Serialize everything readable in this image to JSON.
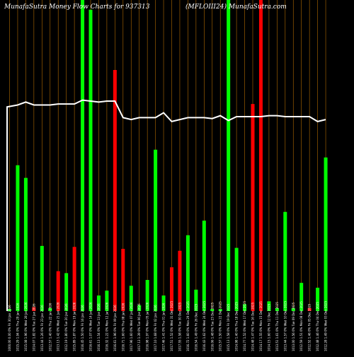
{
  "title": {
    "left": "MunafaSutra  Money Flow  Charts for 937313",
    "right": "(MFLOIII24) MunafaSutra.com"
  },
  "colors": {
    "background": "#000000",
    "up": "#00ff00",
    "down": "#ff0000",
    "grid": "#b36b00",
    "line": "#ffffff",
    "text": "#ffffff"
  },
  "chart_data": {
    "type": "bar",
    "categories": [
      "Fri 30 Jan 2026",
      "Thu 29 Jan 2026",
      "Wed 28 Jan 2026",
      "Tue 27 Jan 2026",
      "Fri 23 Jan 2026",
      "Thu 22 Jan 2026",
      "Wed 21 Jan 2026",
      "Tue 20 Jan 2026",
      "Mon 19 Jan 2026",
      "Fri 16 Jan 2026",
      "Wed 14 Jan 2026",
      "Tue 13 Jan 2026",
      "Mon 12 Jan 2026",
      "Fri 09 Jan 2026",
      "Thu 08 Jan 2026",
      "Wed 07 Jan 2026",
      "Tue 06 Jan 2026",
      "Mon 05 Jan 2026",
      "Fri 02 Jan 2026",
      "Thu 01 Jan 2026",
      "Wed 31 Dec 2025",
      "Tue 30 Dec 2025",
      "Mon 29 Dec 2025",
      "Fri 26 Dec 2025",
      "Wed 24 Dec 2025",
      "Tue 23 Dec 2025",
      "Mon 22 Dec 2025",
      "Fri 19 Dec 2025",
      "Thu 18 Dec 2025",
      "Wed 17 Dec 2025",
      "Tue 16 Dec 2025",
      "Mon 15 Dec 2025",
      "Fri 12 Dec 2025",
      "Thu 11 Dec 2025",
      "Wed 10 Dec 2025",
      "Tue 09 Dec 2025",
      "Mon 08 Dec 2025",
      "Fri 05 Dec 2025",
      "Thu 04 Dec 2025",
      "Wed 03 Dec 2025"
    ],
    "bar_labels": [
      "1000.00 0.00 0%",
      "1015.29 1.94 0%",
      "1015.08 1.96 0%",
      "1014.07 1.82 0%",
      "1013.44 1.26 0%",
      "1012.57 1.40 0%",
      "1013.13 1.42 0%",
      "1012.19 1.80 0%",
      "1015.89 1.87 0%",
      "1016.45 1.50 0%",
      "1016.61 1.07 0%",
      "1016.13 1.54 0%",
      "1016.32 1.22 0%",
      "1016.61 1.96 0%",
      "1016.71 1.60 0%",
      "1017.96 1.60 0%",
      "1017.13 1.39 0%",
      "1016.98 1.97 0%",
      "1017.10 1.68 0%",
      "1017.46 1.41 0%",
      "1017.51 1.52 0%",
      "1017.55 1.58 0%",
      "1016.72 1.60 0%",
      "1016.54 1.49 0%",
      "1016.43 1.62 0%",
      "1016.06 1.48 0%",
      "1015.57 1.50 0%",
      "1015.13 1.58 0%",
      "1014.98 1.40 0%",
      "1014.77 1.52 0%",
      "1014.48 1.47 0%",
      "1014.17 1.55 0%",
      "1014.15 1.60 0%",
      "1013.51 1.61 0%",
      "1013.44 1.57 0%",
      "1013.00 1.56 0%",
      "1012.59 1.51 0%",
      "1012.52 1.46 0%",
      "1012.48 1.46 0%",
      "1012.28 1.49 0%"
    ],
    "values": [
      0.2,
      15.0,
      13.7,
      0.4,
      6.7,
      0.3,
      4.1,
      3.9,
      6.6,
      32.0,
      31.0,
      1.6,
      2.1,
      24.8,
      6.4,
      2.6,
      0.6,
      3.2,
      16.6,
      1.6,
      4.5,
      6.2,
      7.8,
      2.2,
      9.3,
      0.2,
      0.2,
      32.0,
      6.5,
      0.7,
      21.3,
      32.0,
      1.0,
      0.3,
      10.2,
      0.3,
      2.9,
      0.3,
      2.4,
      15.8
    ],
    "directions": [
      "up",
      "up",
      "up",
      "down",
      "up",
      "up",
      "down",
      "up",
      "down",
      "up",
      "up",
      "up",
      "up",
      "down",
      "down",
      "up",
      "up",
      "up",
      "up",
      "up",
      "down",
      "down",
      "up",
      "up",
      "up",
      "up",
      "up",
      "up",
      "up",
      "up",
      "down",
      "down",
      "up",
      "up",
      "up",
      "up",
      "up",
      "down",
      "up",
      "up"
    ],
    "line": [
      21.0,
      21.2,
      21.5,
      21.2,
      21.2,
      21.2,
      21.3,
      21.3,
      21.3,
      21.7,
      21.6,
      21.5,
      21.6,
      21.6,
      19.9,
      19.7,
      19.9,
      19.9,
      19.9,
      20.4,
      19.5,
      19.7,
      19.9,
      19.9,
      19.9,
      19.8,
      20.1,
      19.6,
      20.0,
      20.0,
      20.0,
      20.0,
      20.1,
      20.1,
      20.0,
      20.0,
      20.0,
      20.0,
      19.5,
      19.7
    ],
    "ylim": [
      0,
      32
    ]
  }
}
